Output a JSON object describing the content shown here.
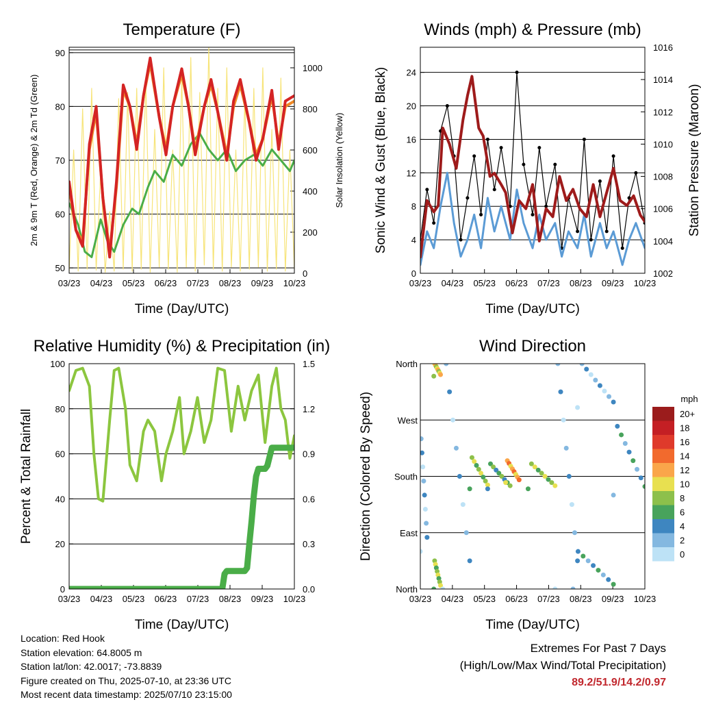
{
  "chart_data": [
    {
      "type": "line",
      "title": "Temperature (F)",
      "xlabel": "Time (Day/UTC)",
      "ylabel": "2m & 9m T (Red, Orange) & 2m Td (Green)",
      "y2label": "Solar Insolation (Yellow)",
      "x_ticks": [
        "03/23",
        "04/23",
        "05/23",
        "06/23",
        "07/23",
        "08/23",
        "09/23",
        "10/23"
      ],
      "ylim": [
        49,
        91
      ],
      "y_ticks": [
        50,
        60,
        70,
        80,
        90
      ],
      "y2lim": [
        0,
        1100
      ],
      "y2_ticks": [
        0,
        200,
        400,
        600,
        800,
        1000
      ],
      "grid": true,
      "series": [
        {
          "color": "#d42424",
          "x": [
            0,
            0.03,
            0.06,
            0.09,
            0.12,
            0.15,
            0.18,
            0.21,
            0.24,
            0.27,
            0.3,
            0.33,
            0.36,
            0.4,
            0.43,
            0.46,
            0.5,
            0.53,
            0.56,
            0.6,
            0.63,
            0.66,
            0.7,
            0.73,
            0.76,
            0.8,
            0.83,
            0.86,
            0.9,
            0.93,
            0.96,
            1.0
          ],
          "y": [
            66,
            57,
            54,
            73,
            80,
            63,
            52,
            66,
            84,
            80,
            72,
            82,
            89,
            78,
            71,
            80,
            87,
            80,
            71,
            80,
            85,
            79,
            70,
            81,
            85,
            77,
            70,
            74,
            83,
            72,
            81,
            82
          ]
        },
        {
          "color": "#f08a28",
          "x": [
            0,
            0.03,
            0.06,
            0.09,
            0.12,
            0.15,
            0.18,
            0.21,
            0.24,
            0.27,
            0.3,
            0.33,
            0.36,
            0.4,
            0.43,
            0.46,
            0.5,
            0.53,
            0.56,
            0.6,
            0.63,
            0.66,
            0.7,
            0.73,
            0.76,
            0.8,
            0.83,
            0.86,
            0.9,
            0.93,
            0.96,
            1.0
          ],
          "y": [
            65,
            57,
            55,
            72,
            79,
            63,
            53,
            65,
            83,
            80,
            73,
            82,
            88,
            78,
            72,
            80,
            86,
            80,
            72,
            80,
            84,
            79,
            71,
            80,
            84,
            77,
            71,
            74,
            82,
            73,
            80,
            81
          ]
        },
        {
          "color": "#4aad48",
          "x": [
            0,
            0.04,
            0.07,
            0.1,
            0.14,
            0.17,
            0.2,
            0.24,
            0.28,
            0.31,
            0.35,
            0.38,
            0.42,
            0.46,
            0.5,
            0.54,
            0.58,
            0.62,
            0.66,
            0.7,
            0.74,
            0.78,
            0.82,
            0.86,
            0.9,
            0.94,
            0.98,
            1.0
          ],
          "y": [
            62,
            58,
            53,
            52,
            59,
            55,
            53,
            58,
            61,
            60,
            65,
            68,
            66,
            71,
            69,
            73,
            75,
            72,
            70,
            72,
            68,
            70,
            71,
            69,
            72,
            70,
            68,
            70
          ]
        },
        {
          "color": "#f7e479",
          "x": [
            0,
            0.02,
            0.04,
            0.06,
            0.08,
            0.1,
            0.12,
            0.14,
            0.16,
            0.18,
            0.2,
            0.22,
            0.24,
            0.26,
            0.28,
            0.3,
            0.32,
            0.34,
            0.36,
            0.38,
            0.4,
            0.42,
            0.44,
            0.46,
            0.48,
            0.5,
            0.52,
            0.54,
            0.56,
            0.58,
            0.6,
            0.62,
            0.64,
            0.66,
            0.68,
            0.7,
            0.72,
            0.74,
            0.76,
            0.78,
            0.8,
            0.82,
            0.84,
            0.86,
            0.88,
            0.9,
            0.92,
            0.94,
            0.96,
            0.98,
            1.0
          ],
          "y": [
            5,
            600,
            10,
            800,
            20,
            900,
            15,
            500,
            5,
            300,
            10,
            850,
            20,
            880,
            10,
            900,
            20,
            950,
            5,
            700,
            30,
            1000,
            20,
            600,
            5,
            950,
            30,
            1050,
            10,
            880,
            40,
            1100,
            20,
            900,
            10,
            1000,
            30,
            600,
            10,
            850,
            20,
            900,
            30,
            1000,
            10,
            700,
            20,
            950,
            10,
            600,
            20
          ]
        }
      ]
    },
    {
      "type": "line",
      "title": "Winds (mph) & Pressure (mb)",
      "xlabel": "Time (Day/UTC)",
      "ylabel": "Sonic Wind & Gust (Blue, Black)",
      "y2label": "Station Pressure (Maroon)",
      "x_ticks": [
        "03/23",
        "04/23",
        "05/23",
        "06/23",
        "07/23",
        "08/23",
        "09/23",
        "10/23"
      ],
      "ylim": [
        0,
        27
      ],
      "y_ticks": [
        0,
        4,
        8,
        12,
        16,
        20,
        24
      ],
      "y2lim": [
        1002,
        1016
      ],
      "y2_ticks": [
        1002,
        1004,
        1006,
        1008,
        1010,
        1012,
        1014,
        1016
      ],
      "grid": true,
      "series": [
        {
          "color": "#5b9bd5",
          "x": [
            0,
            0.03,
            0.06,
            0.09,
            0.12,
            0.15,
            0.18,
            0.21,
            0.24,
            0.27,
            0.3,
            0.33,
            0.36,
            0.4,
            0.43,
            0.46,
            0.5,
            0.53,
            0.56,
            0.6,
            0.63,
            0.66,
            0.7,
            0.73,
            0.76,
            0.8,
            0.83,
            0.86,
            0.9,
            0.93,
            0.96,
            1.0
          ],
          "y": [
            1,
            5,
            3,
            8,
            12,
            6,
            2,
            4,
            7,
            3,
            9,
            5,
            8,
            4,
            10,
            6,
            3,
            7,
            4,
            6,
            2,
            5,
            3,
            7,
            2,
            6,
            3,
            5,
            1,
            4,
            6,
            3
          ]
        },
        {
          "color": "#000000",
          "x": [
            0,
            0.03,
            0.06,
            0.09,
            0.12,
            0.15,
            0.18,
            0.21,
            0.24,
            0.27,
            0.3,
            0.33,
            0.36,
            0.4,
            0.43,
            0.46,
            0.5,
            0.53,
            0.56,
            0.6,
            0.63,
            0.66,
            0.7,
            0.73,
            0.76,
            0.8,
            0.83,
            0.86,
            0.9,
            0.93,
            0.96,
            1.0
          ],
          "y": [
            4,
            10,
            6,
            17,
            20,
            14,
            4,
            9,
            14,
            7,
            16,
            10,
            15,
            8,
            24,
            13,
            7,
            15,
            8,
            13,
            3,
            9,
            5,
            16,
            4,
            11,
            5,
            14,
            3,
            9,
            12,
            6
          ]
        },
        {
          "color": "#9e1b1b",
          "x": [
            0,
            0.03,
            0.06,
            0.08,
            0.1,
            0.13,
            0.16,
            0.19,
            0.21,
            0.23,
            0.26,
            0.28,
            0.31,
            0.33,
            0.36,
            0.38,
            0.41,
            0.44,
            0.47,
            0.5,
            0.53,
            0.56,
            0.59,
            0.62,
            0.65,
            0.68,
            0.71,
            0.74,
            0.77,
            0.8,
            0.83,
            0.86,
            0.89,
            0.92,
            0.95,
            0.98,
            1.0
          ],
          "y": [
            1003,
            1006.5,
            1005.8,
            1006.2,
            1011,
            1010,
            1008.5,
            1011.5,
            1013,
            1014.2,
            1011,
            1010.5,
            1008,
            1008.2,
            1007.5,
            1007,
            1004.5,
            1006.5,
            1006,
            1007.5,
            1004,
            1006,
            1005.5,
            1008,
            1006.5,
            1007.2,
            1006,
            1005.5,
            1007.5,
            1005.5,
            1007,
            1008.5,
            1006.5,
            1006.2,
            1006.8,
            1005.6,
            1005.2
          ]
        }
      ]
    },
    {
      "type": "line",
      "title": "Relative Humidity (%) & Precipitation (in)",
      "xlabel": "Time (Day/UTC)",
      "ylabel": "Percent & Total Rainfall",
      "x_ticks": [
        "03/23",
        "04/23",
        "05/23",
        "06/23",
        "07/23",
        "08/23",
        "09/23",
        "10/23"
      ],
      "ylim": [
        0,
        100
      ],
      "y_ticks": [
        0,
        20,
        40,
        60,
        80,
        100
      ],
      "y2lim": [
        0,
        1.5
      ],
      "y2_ticks": [
        "0.0",
        "0.3",
        "0.6",
        "0.9",
        "1.2",
        "1.5"
      ],
      "grid": true,
      "series": [
        {
          "color": "#8cc63f",
          "x": [
            0,
            0.03,
            0.06,
            0.09,
            0.11,
            0.13,
            0.15,
            0.18,
            0.2,
            0.22,
            0.25,
            0.27,
            0.3,
            0.33,
            0.35,
            0.38,
            0.41,
            0.43,
            0.46,
            0.49,
            0.51,
            0.54,
            0.57,
            0.6,
            0.63,
            0.66,
            0.69,
            0.72,
            0.75,
            0.78,
            0.81,
            0.84,
            0.87,
            0.9,
            0.92,
            0.94,
            0.96,
            0.98,
            1.0
          ],
          "y": [
            88,
            97,
            98,
            90,
            60,
            40,
            39,
            75,
            97,
            98,
            80,
            55,
            48,
            70,
            75,
            70,
            48,
            60,
            70,
            85,
            60,
            70,
            85,
            65,
            75,
            98,
            97,
            70,
            90,
            75,
            88,
            95,
            65,
            90,
            98,
            80,
            75,
            58,
            68
          ]
        },
        {
          "color": "#4aad48",
          "x": [
            0,
            0.1,
            0.2,
            0.3,
            0.4,
            0.5,
            0.6,
            0.68,
            0.69,
            0.7,
            0.78,
            0.79,
            0.8,
            0.81,
            0.82,
            0.83,
            0.84,
            0.85,
            0.86,
            0.87,
            0.88,
            0.9,
            0.92,
            0.94,
            0.96,
            0.98,
            1.0
          ],
          "y": [
            0,
            0,
            0,
            0,
            0,
            0,
            0,
            0,
            0.1,
            0.12,
            0.12,
            0.14,
            0.3,
            0.45,
            0.62,
            0.75,
            0.8,
            0.8,
            0.8,
            0.8,
            0.82,
            0.94,
            0.94,
            0.94,
            0.94,
            0.94,
            0.94
          ]
        }
      ]
    },
    {
      "type": "scatter",
      "title": "Wind Direction",
      "xlabel": "Time (Day/UTC)",
      "ylabel": "Direction (Colored By Speed)",
      "x_ticks": [
        "03/23",
        "04/23",
        "05/23",
        "06/23",
        "07/23",
        "08/23",
        "09/23",
        "10/23"
      ],
      "y_ticks": [
        "North",
        "East",
        "South",
        "West",
        "North"
      ],
      "ylim": [
        0,
        360
      ],
      "grid": true,
      "legend": {
        "title": "mph",
        "position": "right",
        "labels": [
          "20+",
          "18",
          "16",
          "14",
          "12",
          "10",
          "8",
          "6",
          "4",
          "2",
          "0"
        ],
        "colors": [
          "#9b1c1c",
          "#c41f24",
          "#df3a2b",
          "#f26a2d",
          "#faa64a",
          "#e8e050",
          "#8dc04b",
          "#48a35c",
          "#3e86c0",
          "#84b8e0",
          "#bde2f6"
        ]
      },
      "clusters": [
        {
          "x": [
            0.0,
            0.03
          ],
          "y": [
            60,
            240
          ],
          "speed": 2
        },
        {
          "x": [
            0.06,
            0.09
          ],
          "y": [
            0,
            45
          ],
          "speed": 8
        },
        {
          "x": [
            0.06,
            0.09
          ],
          "y": [
            340,
            360
          ],
          "speed": 10
        },
        {
          "x": [
            0.1,
            0.22
          ],
          "y": [
            0,
            360
          ],
          "speed": 1
        },
        {
          "x": [
            0.22,
            0.3
          ],
          "y": [
            160,
            210
          ],
          "speed": 8
        },
        {
          "x": [
            0.3,
            0.4
          ],
          "y": [
            160,
            200
          ],
          "speed": 5
        },
        {
          "x": [
            0.38,
            0.44
          ],
          "y": [
            170,
            205
          ],
          "speed": 12
        },
        {
          "x": [
            0.48,
            0.6
          ],
          "y": [
            160,
            200
          ],
          "speed": 7
        },
        {
          "x": [
            0.6,
            0.7
          ],
          "y": [
            0,
            360
          ],
          "speed": 1
        },
        {
          "x": [
            0.68,
            0.86
          ],
          "y": [
            0,
            60
          ],
          "speed": 4
        },
        {
          "x": [
            0.7,
            0.86
          ],
          "y": [
            290,
            360
          ],
          "speed": 2
        },
        {
          "x": [
            0.86,
            1.0
          ],
          "y": [
            150,
            260
          ],
          "speed": 4
        }
      ]
    }
  ],
  "info": {
    "location": "Location: Red Hook",
    "elevation": "Station elevation: 64.8005 m",
    "latlon": "Station lat/lon: 42.0017; -73.8839",
    "created": "Figure created on Thu, 2025-07-10, at 23:36 UTC",
    "recent": "Most recent data timestamp: 2025/07/10 23:15:00"
  },
  "extremes": {
    "line1": "Extremes For Past 7 Days",
    "line2": "(High/Low/Max Wind/Total Precipitation)",
    "values": "89.2/51.9/14.2/0.97"
  }
}
